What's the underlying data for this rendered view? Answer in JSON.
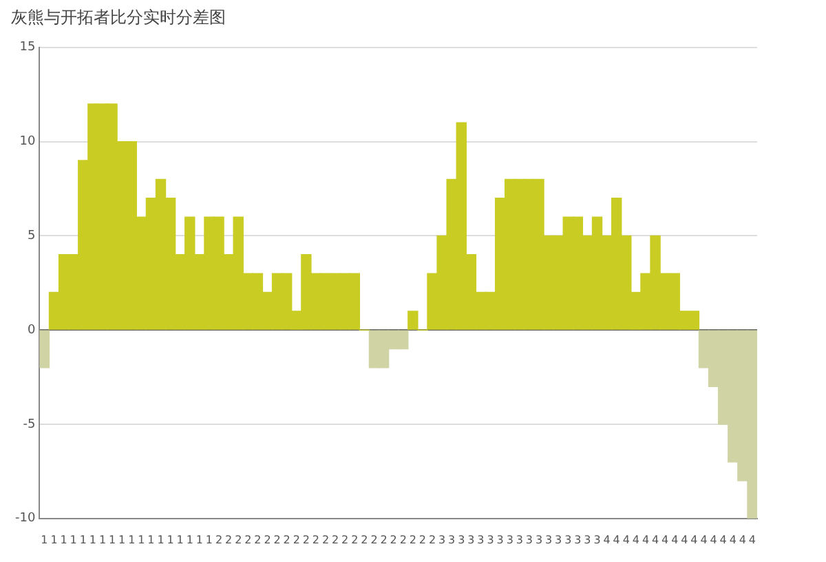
{
  "chart_data": {
    "type": "bar",
    "title": "灰熊与开拓者比分实时分差图",
    "categories": [
      "1",
      "1",
      "1",
      "1",
      "1",
      "1",
      "1",
      "1",
      "1",
      "1",
      "1",
      "1",
      "1",
      "1",
      "1",
      "1",
      "1",
      "1",
      "2",
      "2",
      "2",
      "2",
      "2",
      "2",
      "2",
      "2",
      "2",
      "2",
      "2",
      "2",
      "2",
      "2",
      "2",
      "2",
      "2",
      "2",
      "2",
      "2",
      "2",
      "2",
      "2",
      "3",
      "3",
      "3",
      "3",
      "3",
      "3",
      "3",
      "3",
      "3",
      "3",
      "3",
      "3",
      "3",
      "3",
      "3",
      "3",
      "3",
      "4",
      "4",
      "4",
      "4",
      "4",
      "4",
      "4",
      "4",
      "4",
      "4",
      "4",
      "4",
      "4",
      "4",
      "4",
      "4"
    ],
    "values": [
      -2,
      2,
      4,
      4,
      9,
      12,
      12,
      12,
      10,
      10,
      6,
      7,
      8,
      7,
      4,
      6,
      4,
      6,
      6,
      4,
      6,
      3,
      3,
      2,
      3,
      3,
      1,
      4,
      3,
      3,
      3,
      3,
      3,
      0,
      -2,
      -2,
      -1,
      -1,
      1,
      0,
      3,
      5,
      8,
      11,
      4,
      2,
      2,
      7,
      8,
      8,
      8,
      8,
      5,
      5,
      6,
      6,
      5,
      6,
      5,
      7,
      5,
      2,
      3,
      5,
      3,
      3,
      1,
      1,
      -2,
      -3,
      -5,
      -7,
      -8,
      -10
    ],
    "colors": [
      "#d0d3a3",
      "#c9cc22",
      "#c9cc22",
      "#c9cc22",
      "#c9cc22",
      "#c9cc22",
      "#c9cc22",
      "#c9cc22",
      "#c9cc22",
      "#c9cc22",
      "#c9cc22",
      "#c9cc22",
      "#c9cc22",
      "#c9cc22",
      "#c9cc22",
      "#c9cc22",
      "#c9cc22",
      "#c9cc22",
      "#c9cc22",
      "#c9cc22",
      "#c9cc22",
      "#c9cc22",
      "#c9cc22",
      "#c9cc22",
      "#c9cc22",
      "#c9cc22",
      "#c9cc22",
      "#c9cc22",
      "#c9cc22",
      "#c9cc22",
      "#c9cc22",
      "#c9cc22",
      "#c9cc22",
      "#c9cc22",
      "#d0d3a3",
      "#d0d3a3",
      "#d0d3a3",
      "#d0d3a3",
      "#c9cc22",
      "#c9cc22",
      "#c9cc22",
      "#c9cc22",
      "#c9cc22",
      "#c9cc22",
      "#c9cc22",
      "#c9cc22",
      "#c9cc22",
      "#c9cc22",
      "#c9cc22",
      "#c9cc22",
      "#c9cc22",
      "#c9cc22",
      "#c9cc22",
      "#c9cc22",
      "#c9cc22",
      "#c9cc22",
      "#c9cc22",
      "#c9cc22",
      "#c9cc22",
      "#c9cc22",
      "#c9cc22",
      "#c9cc22",
      "#c9cc22",
      "#c9cc22",
      "#c9cc22",
      "#c9cc22",
      "#c9cc22",
      "#c9cc22",
      "#d0d3a3",
      "#d0d3a3",
      "#d0d3a3",
      "#d0d3a3",
      "#d0d3a3",
      "#d0d3a3"
    ],
    "ylim": [
      -10,
      15
    ],
    "yticks": [
      -10,
      -5,
      0,
      5,
      10,
      15
    ],
    "grid": "y",
    "legend": false
  }
}
